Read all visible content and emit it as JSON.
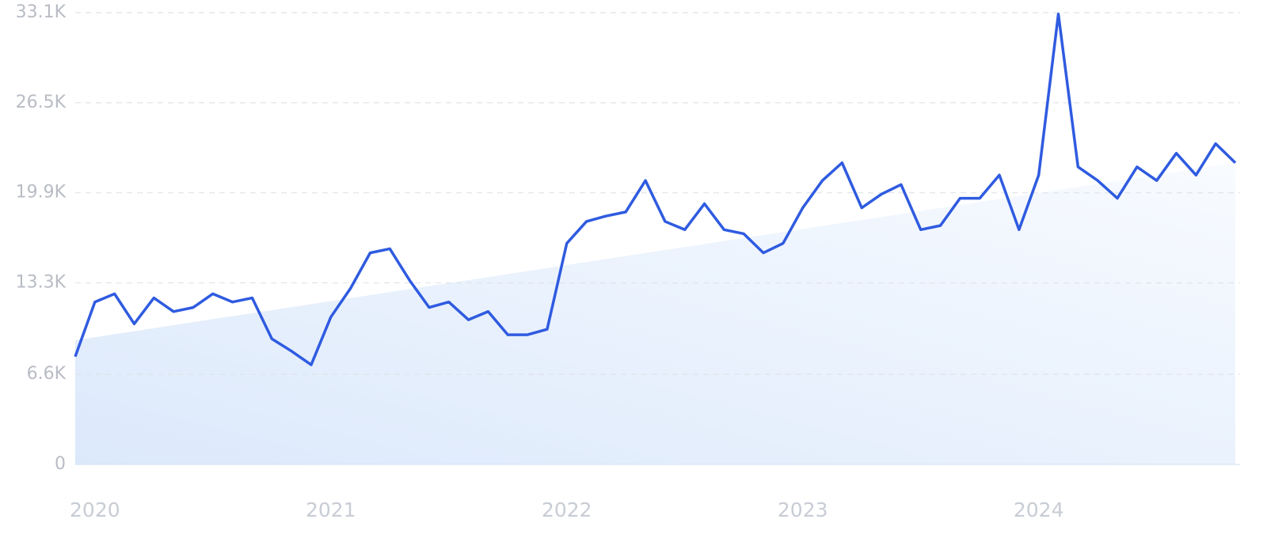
{
  "chart_data": {
    "type": "line",
    "categories": [
      null,
      "2020",
      null,
      null,
      null,
      null,
      null,
      null,
      null,
      null,
      null,
      null,
      null,
      "2021",
      null,
      null,
      null,
      null,
      null,
      null,
      null,
      null,
      null,
      null,
      null,
      "2022",
      null,
      null,
      null,
      null,
      null,
      null,
      null,
      null,
      null,
      null,
      null,
      "2023",
      null,
      null,
      null,
      null,
      null,
      null,
      null,
      null,
      null,
      null,
      null,
      "2024",
      null,
      null,
      null,
      null,
      null,
      null,
      null,
      null,
      null,
      null
    ],
    "series": [
      {
        "color": "#2f5be0",
        "values": [
          7900,
          11900,
          12500,
          10300,
          12200,
          11200,
          11500,
          12500,
          11900,
          12200,
          9200,
          8300,
          7300,
          10800,
          12900,
          15500,
          15800,
          13500,
          11500,
          11900,
          10600,
          11200,
          9500,
          9500,
          9900,
          16200,
          17800,
          18200,
          18500,
          20800,
          17800,
          17200,
          19100,
          17200,
          16900,
          15500,
          16200,
          18800,
          20800,
          22100,
          18800,
          19800,
          20500,
          17200,
          17500,
          19500,
          19500,
          21200,
          17200,
          21200,
          33000,
          21800,
          20800,
          19500,
          21800,
          20800,
          22800,
          21200,
          23500,
          22100
        ]
      }
    ],
    "trend": {
      "values": [
        9100,
        22100
      ]
    },
    "ylim": [
      0,
      33100
    ],
    "yticks": [
      0,
      {
        "value": 6600,
        "label": "6.6K"
      },
      {
        "value": 13300,
        "label": "13.3K"
      },
      {
        "value": 19900,
        "label": "19.9K"
      },
      {
        "value": 26500,
        "label": "26.5K"
      },
      {
        "value": 33100,
        "label": "33.1K"
      }
    ],
    "grid": true
  }
}
